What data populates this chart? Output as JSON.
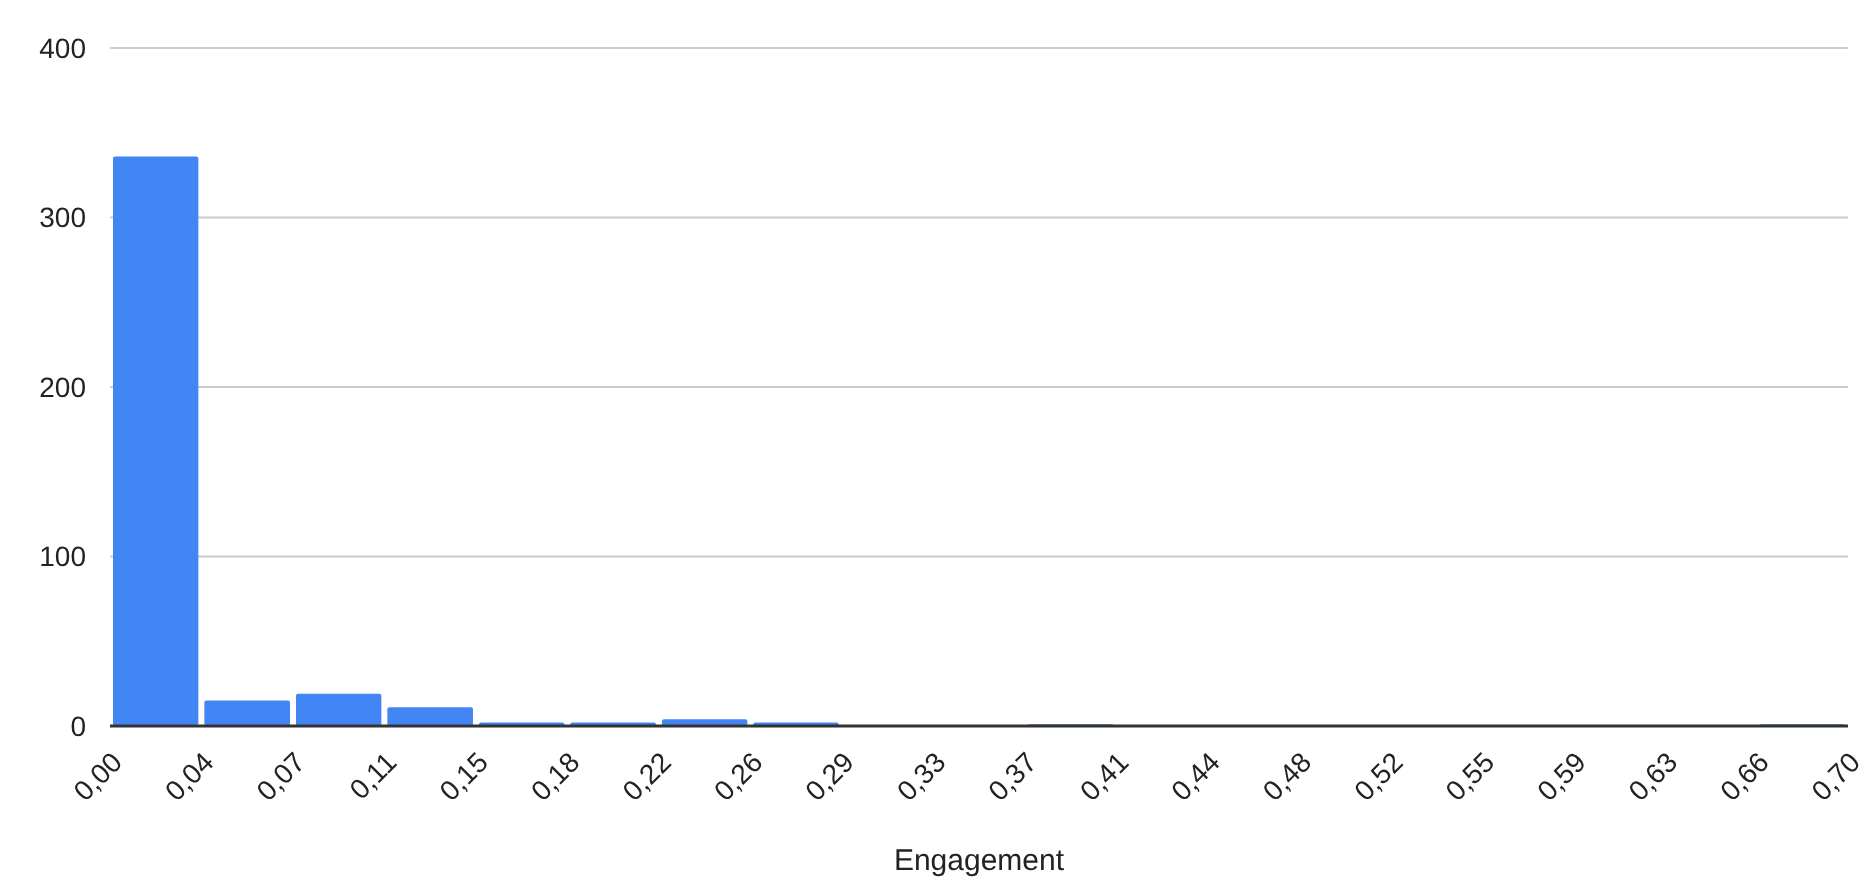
{
  "chart_data": {
    "type": "histogram",
    "xlabel": "Engagement",
    "color": "#4285f4",
    "bins": [
      0,
      0.0368,
      0.0737,
      0.1105,
      0.1474,
      0.1842,
      0.2211,
      0.2579,
      0.2947,
      0.3316,
      0.3684,
      0.4053,
      0.4421,
      0.4789,
      0.5158,
      0.5526,
      0.5895,
      0.6263,
      0.6632,
      0.7
    ],
    "values": [
      336,
      15,
      19,
      11,
      2,
      2,
      4,
      2,
      0,
      0,
      1,
      0,
      0,
      0,
      0,
      0,
      0,
      0,
      1
    ],
    "xlim": [
      0,
      0.7
    ],
    "xticks": [
      {
        "value": 0,
        "label": "0,00"
      },
      {
        "value": 0.0368,
        "label": "0,04"
      },
      {
        "value": 0.0737,
        "label": "0,07"
      },
      {
        "value": 0.1105,
        "label": "0,11"
      },
      {
        "value": 0.1474,
        "label": "0,15"
      },
      {
        "value": 0.1842,
        "label": "0,18"
      },
      {
        "value": 0.2211,
        "label": "0,22"
      },
      {
        "value": 0.2579,
        "label": "0,26"
      },
      {
        "value": 0.2947,
        "label": "0,29"
      },
      {
        "value": 0.3316,
        "label": "0,33"
      },
      {
        "value": 0.3684,
        "label": "0,37"
      },
      {
        "value": 0.4053,
        "label": "0,41"
      },
      {
        "value": 0.4421,
        "label": "0,44"
      },
      {
        "value": 0.4789,
        "label": "0,48"
      },
      {
        "value": 0.5158,
        "label": "0,52"
      },
      {
        "value": 0.5526,
        "label": "0,55"
      },
      {
        "value": 0.5895,
        "label": "0,59"
      },
      {
        "value": 0.6263,
        "label": "0,63"
      },
      {
        "value": 0.6632,
        "label": "0,66"
      },
      {
        "value": 0.7,
        "label": "0,70"
      }
    ],
    "ylim": [
      0,
      400
    ],
    "yticks": [
      0,
      100,
      200,
      300,
      400
    ],
    "grid": "y"
  }
}
